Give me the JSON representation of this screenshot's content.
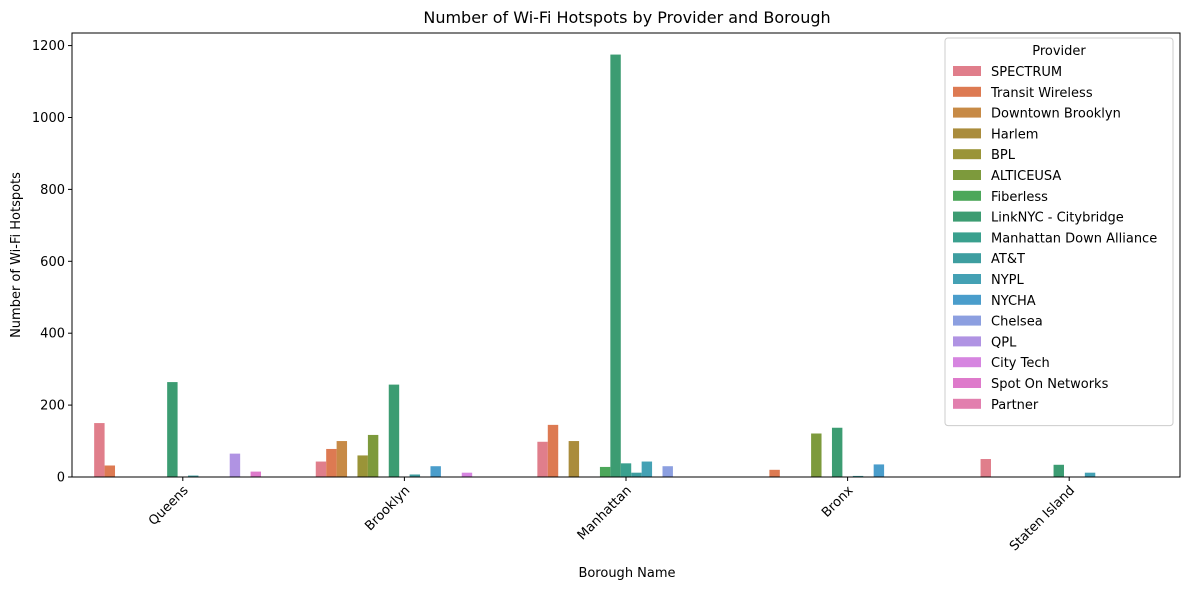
{
  "chart_data": {
    "type": "bar",
    "title": "Number of Wi-Fi Hotspots by Provider and Borough",
    "xlabel": "Borough Name",
    "ylabel": "Number of Wi-Fi Hotspots",
    "ylim": [
      0,
      1235
    ],
    "yticks": [
      0,
      200,
      400,
      600,
      800,
      1000,
      1200
    ],
    "legend_title": "Provider",
    "legend_position": "top-right",
    "grid": false,
    "categories": [
      "Queens",
      "Brooklyn",
      "Manhattan",
      "Bronx",
      "Staten Island"
    ],
    "series": [
      {
        "name": "SPECTRUM",
        "color": "#e07e8b",
        "values": [
          150,
          43,
          98,
          0,
          50
        ]
      },
      {
        "name": "Transit Wireless",
        "color": "#dd7a52",
        "values": [
          32,
          78,
          145,
          20,
          0
        ]
      },
      {
        "name": "Downtown Brooklyn",
        "color": "#c78a46",
        "values": [
          0,
          100,
          0,
          0,
          0
        ]
      },
      {
        "name": "Harlem",
        "color": "#aa8c3c",
        "values": [
          0,
          0,
          100,
          0,
          0
        ]
      },
      {
        "name": "BPL",
        "color": "#9a9438",
        "values": [
          0,
          60,
          0,
          0,
          0
        ]
      },
      {
        "name": "ALTICEUSA",
        "color": "#7d9a3c",
        "values": [
          0,
          117,
          0,
          121,
          0
        ]
      },
      {
        "name": "Fiberless",
        "color": "#4ca75a",
        "values": [
          0,
          0,
          28,
          0,
          0
        ]
      },
      {
        "name": "LinkNYC - Citybridge",
        "color": "#3c9c72",
        "values": [
          264,
          257,
          1175,
          137,
          34
        ]
      },
      {
        "name": "Manhattan Down Alliance",
        "color": "#3aa08e",
        "values": [
          0,
          0,
          38,
          0,
          0
        ]
      },
      {
        "name": "AT&T",
        "color": "#3e9ea0",
        "values": [
          4,
          7,
          12,
          3,
          0
        ]
      },
      {
        "name": "NYPL",
        "color": "#44a1b4",
        "values": [
          0,
          0,
          43,
          0,
          12
        ]
      },
      {
        "name": "NYCHA",
        "color": "#4a9dcb",
        "values": [
          0,
          30,
          0,
          35,
          0
        ]
      },
      {
        "name": "Chelsea",
        "color": "#8c9fe0",
        "values": [
          0,
          0,
          30,
          0,
          0
        ]
      },
      {
        "name": "QPL",
        "color": "#b093e3",
        "values": [
          65,
          0,
          0,
          0,
          0
        ]
      },
      {
        "name": "City Tech",
        "color": "#d685e0",
        "values": [
          0,
          12,
          0,
          0,
          0
        ]
      },
      {
        "name": "Spot On Networks",
        "color": "#de7acb",
        "values": [
          15,
          0,
          0,
          0,
          0
        ]
      },
      {
        "name": "Partner",
        "color": "#e27fae",
        "values": [
          0,
          0,
          0,
          0,
          0
        ]
      }
    ]
  }
}
